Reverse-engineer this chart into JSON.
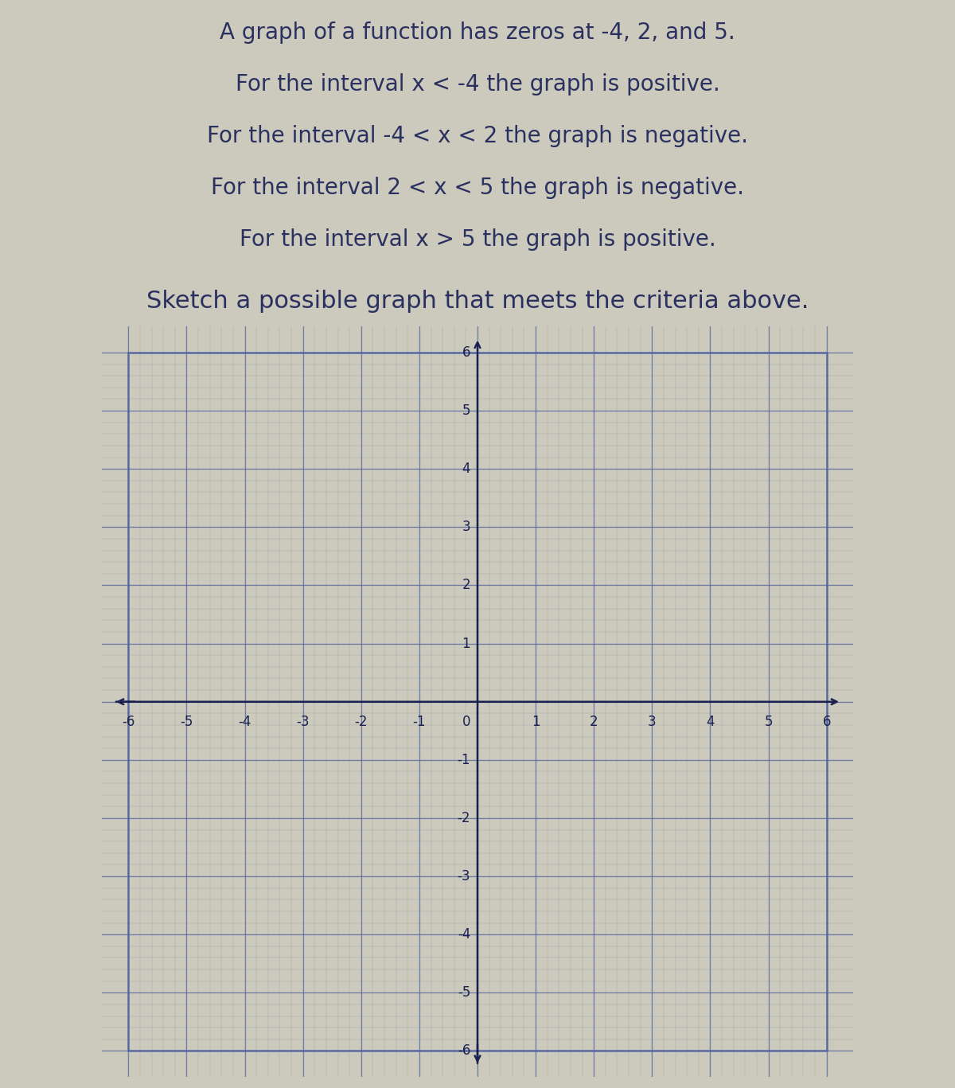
{
  "title_lines": [
    "A graph of a function has zeros at -4, 2, and 5.",
    "For the interval x < -4 the graph is positive.",
    "For the interval -4 < x < 2 the graph is negative.",
    "For the interval 2 < x < 5 the graph is negative.",
    "For the interval x > 5 the graph is positive.",
    "Sketch a possible graph that meets the criteria above."
  ],
  "title_fontsizes": [
    20,
    20,
    20,
    20,
    20,
    22
  ],
  "background_color": "#cccabc",
  "grid_background": "#f0eddf",
  "grid_color": "#5566a0",
  "axis_color": "#1a2050",
  "xmin": -6,
  "xmax": 6,
  "ymin": -6,
  "ymax": 6,
  "major_ticks_x": [
    -6,
    -5,
    -4,
    -3,
    -2,
    -1,
    0,
    1,
    2,
    3,
    4,
    5,
    6
  ],
  "major_ticks_y": [
    -6,
    -5,
    -4,
    -3,
    -2,
    -1,
    0,
    1,
    2,
    3,
    4,
    5,
    6
  ],
  "minor_divisions": 5,
  "text_color": "#2a3060",
  "tick_fontsize": 12,
  "axis_label_fontsize": 14
}
